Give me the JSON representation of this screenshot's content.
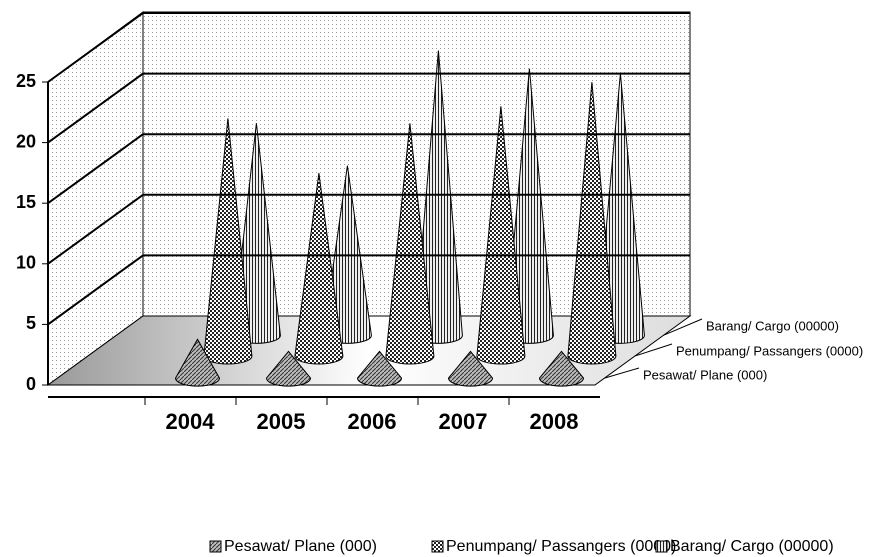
{
  "chart_data": {
    "type": "cone3d",
    "categories": [
      "2004",
      "2005",
      "2006",
      "2007",
      "2008"
    ],
    "series": [
      {
        "name": "Pesawat/ Plane (000)",
        "color": "#888888",
        "values": [
          3.2,
          2.2,
          2.2,
          2.2,
          2.2
        ]
      },
      {
        "name": "Penumpang/ Passangers (0000)",
        "color": "#555555",
        "values": [
          19.6,
          15.1,
          19.2,
          20.6,
          22.6
        ]
      },
      {
        "name": "Barang/ Cargo (00000)",
        "color": "#aaaaaa",
        "values": [
          17.5,
          14,
          23.5,
          22,
          21.6
        ]
      }
    ],
    "ylim": [
      0,
      25
    ],
    "yticks": [
      0,
      5,
      10,
      15,
      20,
      25
    ],
    "grid": true,
    "legend": "bottom"
  }
}
